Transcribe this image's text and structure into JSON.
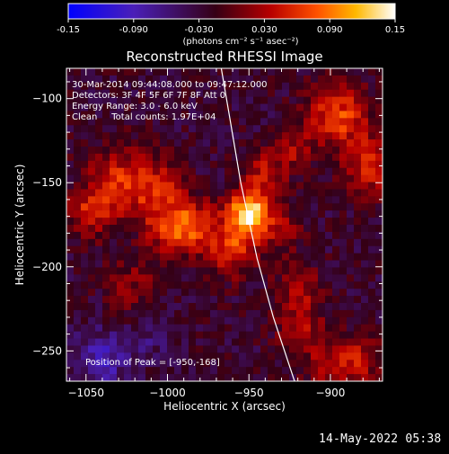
{
  "footer_timestamp": "14-May-2022 05:38",
  "colorbar": {
    "unit_label": "(photons cm⁻² s⁻¹ asec⁻²)",
    "ticks": [
      "-0.15",
      "-0.090",
      "-0.030",
      "0.030",
      "0.090",
      "0.15"
    ],
    "range": [
      -0.15,
      0.15
    ],
    "colormap": "blue-purple-red-orange-yellow-white"
  },
  "chart_data": {
    "type": "heatmap",
    "title": "Reconstructed RHESSI Image",
    "xlabel": "Heliocentric X (arcsec)",
    "ylabel": "Heliocentric Y (arcsec)",
    "xlim": [
      -1062,
      -868
    ],
    "ylim": [
      -268,
      -82
    ],
    "x_ticks": [
      -1050,
      -1000,
      -950,
      -900
    ],
    "x_tick_labels": [
      "−1050",
      "−1000",
      "−950",
      "−900"
    ],
    "y_ticks": [
      -100,
      -150,
      -200,
      -250
    ],
    "y_tick_labels": [
      "−100",
      "−150",
      "−200",
      "−250"
    ],
    "annotations": [
      "30-Mar-2014 09:44:08.000 to 09:47:12.000",
      "Detectors: 3F 4F 5F 6F 7F 8F Att 0",
      "Energy Range: 3.0 - 6.0 keV",
      "Clean     Total counts: 1.97E+04"
    ],
    "peak_label": "Position of Peak = [-950,-168]",
    "peak": [
      -950,
      -168
    ],
    "limb_curve": [
      [
        -967,
        -82
      ],
      [
        -962,
        -110
      ],
      [
        -955,
        -150
      ],
      [
        -945,
        -195
      ],
      [
        -935,
        -230
      ],
      [
        -922,
        -268
      ]
    ],
    "sources": [
      {
        "x": -1028,
        "y": -150,
        "amplitude": 0.08,
        "width": 15
      },
      {
        "x": -1048,
        "y": -168,
        "amplitude": 0.06,
        "width": 10
      },
      {
        "x": -1003,
        "y": -155,
        "amplitude": 0.06,
        "width": 11
      },
      {
        "x": -1000,
        "y": -178,
        "amplitude": 0.07,
        "width": 10
      },
      {
        "x": -984,
        "y": -175,
        "amplitude": 0.08,
        "width": 10
      },
      {
        "x": -950,
        "y": -168,
        "amplitude": 0.15,
        "width": 9
      },
      {
        "x": -960,
        "y": -188,
        "amplitude": 0.08,
        "width": 12
      },
      {
        "x": -940,
        "y": -145,
        "amplitude": 0.06,
        "width": 10
      },
      {
        "x": -930,
        "y": -178,
        "amplitude": 0.05,
        "width": 9
      },
      {
        "x": -895,
        "y": -110,
        "amplitude": 0.09,
        "width": 13
      },
      {
        "x": -875,
        "y": -140,
        "amplitude": 0.08,
        "width": 12
      },
      {
        "x": -920,
        "y": -130,
        "amplitude": 0.05,
        "width": 8
      },
      {
        "x": -920,
        "y": -213,
        "amplitude": 0.05,
        "width": 10
      },
      {
        "x": -918,
        "y": -236,
        "amplitude": 0.05,
        "width": 11
      },
      {
        "x": -900,
        "y": -260,
        "amplitude": 0.05,
        "width": 11
      },
      {
        "x": -882,
        "y": -255,
        "amplitude": 0.06,
        "width": 10
      },
      {
        "x": -1020,
        "y": -212,
        "amplitude": 0.04,
        "width": 12
      },
      {
        "x": -1040,
        "y": -255,
        "amplitude": -0.06,
        "width": 12
      },
      {
        "x": -1010,
        "y": -240,
        "amplitude": -0.03,
        "width": 10
      }
    ],
    "background_level": -0.025
  }
}
